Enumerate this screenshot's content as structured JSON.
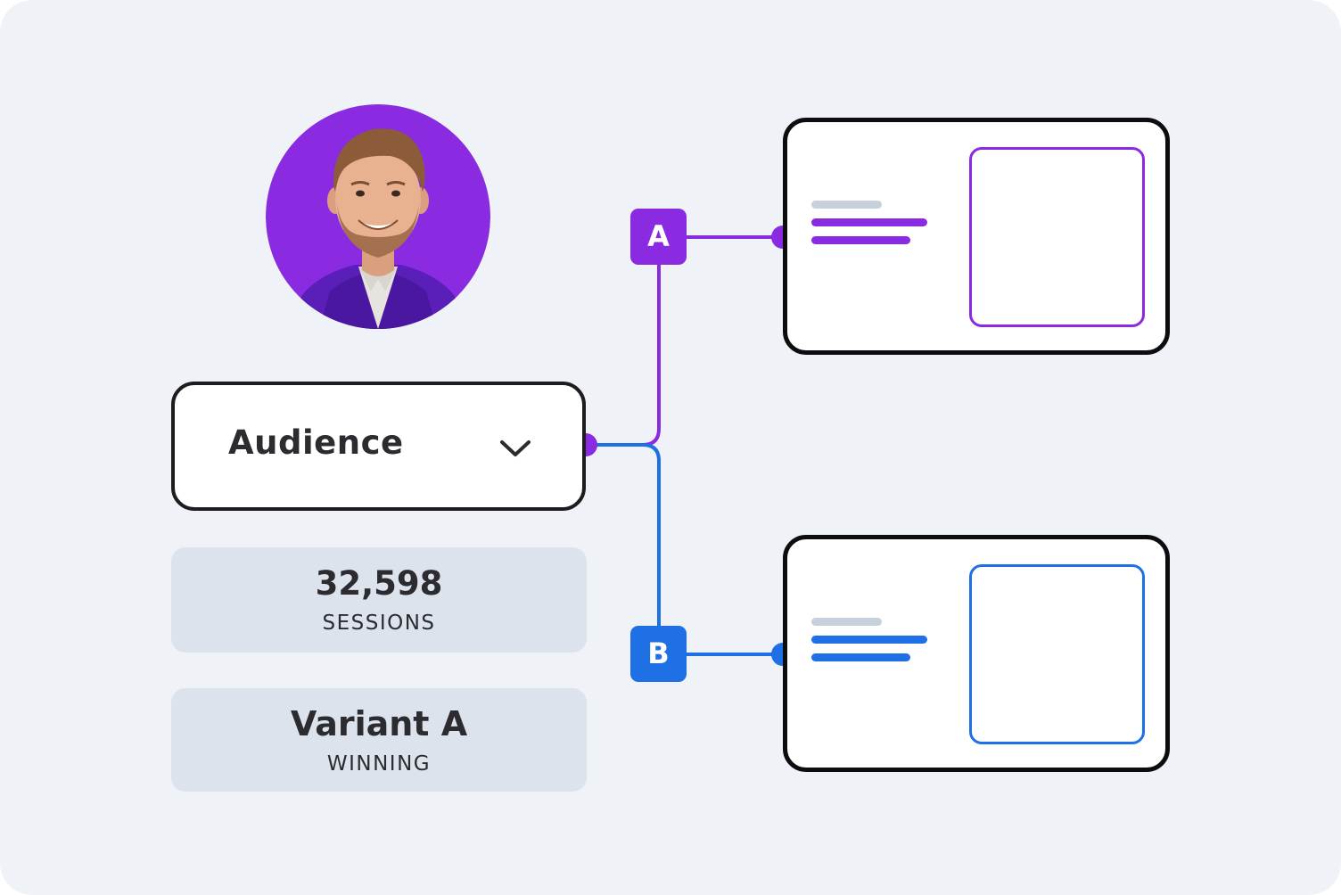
{
  "audience": {
    "label": "Audience",
    "icon": "chevron-down-icon"
  },
  "stats": [
    {
      "value": "32,598",
      "label": "SESSIONS"
    },
    {
      "value": "Variant A",
      "label": "WINNING"
    }
  ],
  "variants": [
    {
      "badge": "A",
      "color": "#8a2be2"
    },
    {
      "badge": "B",
      "color": "#1f6fe5"
    }
  ],
  "colors": {
    "background": "#eff2f7",
    "stat_fill": "#dde3ec",
    "line_gray": "#c7d1dd",
    "dark_text": "#2b2b30",
    "avatar_bg": "#8a2be2"
  }
}
